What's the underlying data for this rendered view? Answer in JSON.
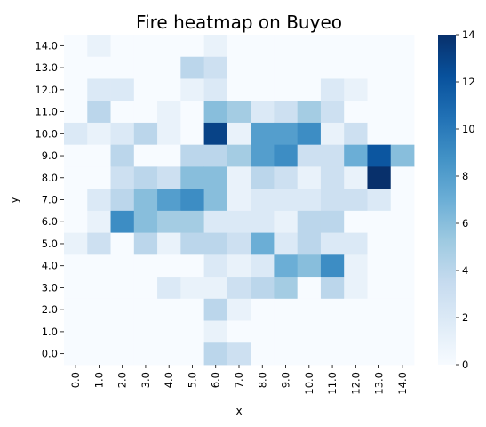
{
  "chart_data": {
    "type": "heatmap",
    "title": "Fire heatmap on Buyeo",
    "xlabel": "x",
    "ylabel": "y",
    "x_categories": [
      "0.0",
      "1.0",
      "2.0",
      "3.0",
      "4.0",
      "5.0",
      "6.0",
      "7.0",
      "8.0",
      "9.0",
      "10.0",
      "11.0",
      "12.0",
      "13.0",
      "14.0"
    ],
    "y_categories": [
      "0.0",
      "1.0",
      "2.0",
      "3.0",
      "4.0",
      "5.0",
      "6.0",
      "7.0",
      "8.0",
      "9.0",
      "10.0",
      "11.0",
      "12.0",
      "13.0",
      "14.0"
    ],
    "values_top_to_bottom": [
      [
        0,
        1,
        0,
        0,
        0,
        0,
        1,
        0,
        0,
        0,
        0,
        0,
        0,
        0,
        0
      ],
      [
        0,
        0,
        0,
        0,
        0,
        4,
        3,
        0,
        0,
        0,
        0,
        0,
        0,
        0,
        0
      ],
      [
        0,
        2,
        2,
        0,
        0,
        1,
        2,
        0,
        0,
        0,
        0,
        2,
        1,
        0,
        0
      ],
      [
        0,
        4,
        0,
        0,
        1,
        0,
        6,
        5,
        2,
        3,
        5,
        3,
        0,
        0,
        0
      ],
      [
        2,
        1,
        2,
        4,
        1,
        0,
        13,
        1,
        8,
        8,
        9,
        1,
        3,
        0,
        0
      ],
      [
        0,
        0,
        4,
        0,
        0,
        4,
        4,
        5,
        8,
        9,
        3,
        3,
        7,
        12,
        6
      ],
      [
        0,
        0,
        3,
        4,
        3,
        6,
        6,
        1,
        4,
        3,
        1,
        3,
        1,
        14,
        0
      ],
      [
        0,
        2,
        4,
        6,
        8,
        9,
        6,
        1,
        2,
        2,
        2,
        3,
        3,
        2,
        0
      ],
      [
        0,
        1,
        9,
        6,
        5,
        5,
        2,
        2,
        2,
        1,
        4,
        4,
        0,
        0,
        0
      ],
      [
        1,
        3,
        0,
        4,
        1,
        4,
        4,
        3,
        7,
        2,
        4,
        2,
        2,
        0,
        0
      ],
      [
        0,
        0,
        0,
        0,
        0,
        0,
        2,
        1,
        2,
        7,
        6,
        9,
        1,
        0,
        0
      ],
      [
        0,
        0,
        0,
        0,
        2,
        1,
        1,
        3,
        4,
        5,
        0,
        4,
        1,
        0,
        0
      ],
      [
        0,
        0,
        0,
        0,
        0,
        0,
        4,
        1,
        0,
        0,
        0,
        0,
        0,
        0,
        0
      ],
      [
        0,
        0,
        0,
        0,
        0,
        0,
        1,
        0,
        0,
        0,
        0,
        0,
        0,
        0,
        0
      ],
      [
        0,
        0,
        0,
        0,
        0,
        0,
        4,
        3,
        0,
        0,
        0,
        0,
        0,
        0,
        0
      ]
    ],
    "vmin": 0,
    "vmax": 14,
    "colormap": "Blues",
    "colorbar_ticks": [
      0,
      2,
      4,
      6,
      8,
      10,
      12,
      14
    ]
  }
}
